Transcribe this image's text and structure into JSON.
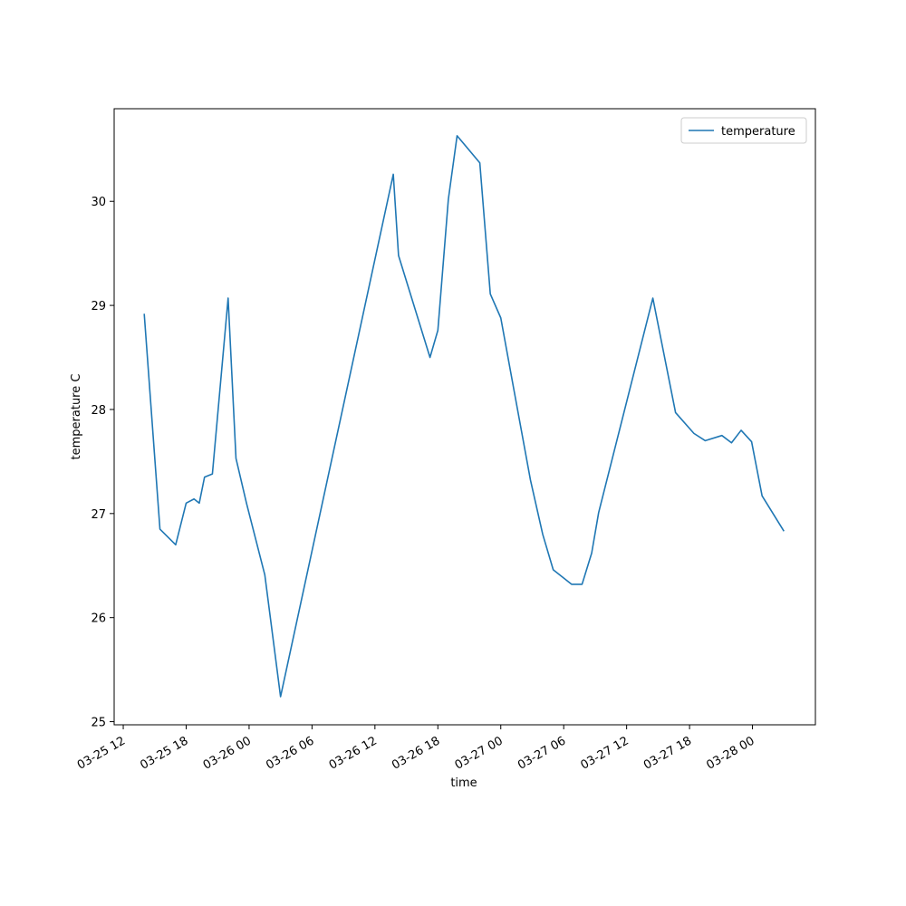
{
  "chart_data": {
    "type": "line",
    "xlabel": "time",
    "ylabel": "temperature C",
    "x": [
      "03-25 14:00",
      "03-25 15:30",
      "03-25 17:00",
      "03-25 18:00",
      "03-25 18:45",
      "03-25 19:15",
      "03-25 19:45",
      "03-25 20:30",
      "03-25 22:00",
      "03-25 22:45",
      "03-25 23:45",
      "03-26 01:30",
      "03-26 03:00",
      "03-26 13:45",
      "03-26 14:15",
      "03-26 17:15",
      "03-26 18:00",
      "03-26 19:00",
      "03-26 19:50",
      "03-26 22:00",
      "03-26 23:00",
      "03-27 00:00",
      "03-27 01:15",
      "03-27 02:50",
      "03-27 04:00",
      "03-27 05:00",
      "03-27 06:45",
      "03-27 07:45",
      "03-27 08:40",
      "03-27 09:20",
      "03-27 14:30",
      "03-27 16:40",
      "03-27 18:25",
      "03-27 19:30",
      "03-27 21:05",
      "03-27 22:00",
      "03-27 22:55",
      "03-27 23:55",
      "03-28 00:55",
      "03-28 03:00"
    ],
    "series": [
      {
        "name": "temperature",
        "color": "#1f77b4",
        "values": [
          28.92,
          26.85,
          26.7,
          27.1,
          27.14,
          27.1,
          27.35,
          27.38,
          29.07,
          27.53,
          27.1,
          26.41,
          25.24,
          30.26,
          29.48,
          28.5,
          28.76,
          30.02,
          30.63,
          30.37,
          29.11,
          28.88,
          28.19,
          27.32,
          26.8,
          26.46,
          26.32,
          26.32,
          26.62,
          27.01,
          29.07,
          27.97,
          27.77,
          27.7,
          27.75,
          27.68,
          27.8,
          27.69,
          27.17,
          26.83
        ]
      }
    ],
    "xlim": [
      "03-25 11:08",
      "03-28 06:00"
    ],
    "xticks": [
      "03-25 12",
      "03-25 18",
      "03-26 00",
      "03-26 06",
      "03-26 12",
      "03-26 18",
      "03-27 00",
      "03-27 06",
      "03-27 12",
      "03-27 18",
      "03-28 00"
    ],
    "ylim": [
      24.97,
      30.89
    ],
    "yticks": [
      25,
      26,
      27,
      28,
      29,
      30
    ],
    "legend": "upper right"
  }
}
